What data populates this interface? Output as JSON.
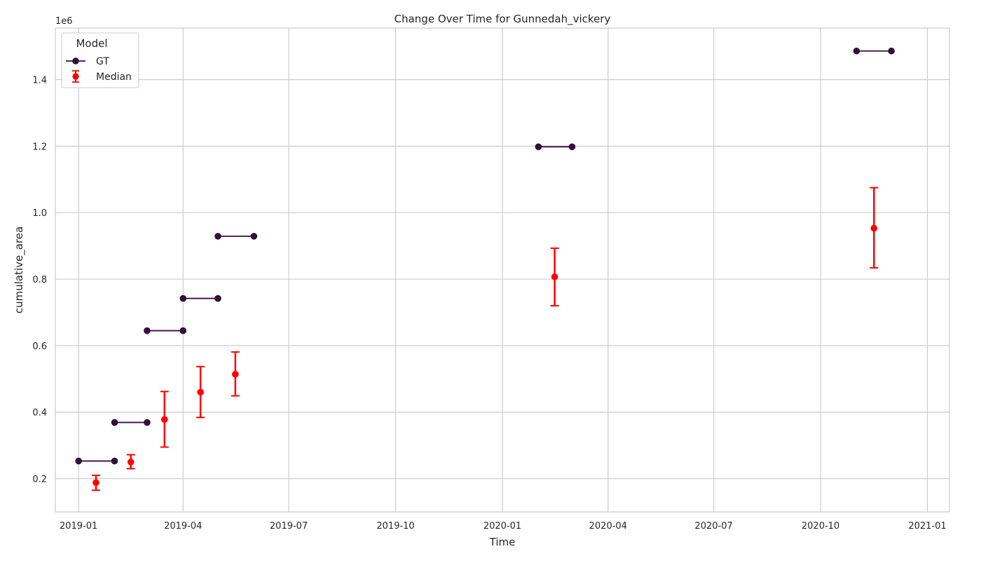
{
  "chart_data": {
    "type": "line",
    "title": "Change Over Time for Gunnedah_vickery",
    "xlabel": "Time",
    "ylabel": "cumulative_area",
    "y_offset_label": "1e6",
    "y_multiplier": 1000000,
    "xlim": [
      "2018-12-12",
      "2021-01-20"
    ],
    "ylim": [
      100000,
      1555000
    ],
    "x_ticks": [
      "2019-01",
      "2019-04",
      "2019-07",
      "2019-10",
      "2020-01",
      "2020-04",
      "2020-07",
      "2020-10",
      "2021-01"
    ],
    "y_ticks": [
      0.2,
      0.4,
      0.6,
      0.8,
      1.0,
      1.2,
      1.4
    ],
    "grid": true,
    "legend": {
      "title": "Model",
      "position": "top-left",
      "entries": [
        "GT",
        "Median"
      ]
    },
    "colors": {
      "gt_line": "#3b0a45",
      "gt_marker": "#3b0a45",
      "median": "#ff0000",
      "grid": "#cccccc",
      "axes": "#cccccc"
    },
    "gt_segments": [
      {
        "x": [
          "2019-01-01",
          "2019-02-01"
        ],
        "y": 253000
      },
      {
        "x": [
          "2019-02-01",
          "2019-03-01"
        ],
        "y": 369000
      },
      {
        "x": [
          "2019-03-01",
          "2019-04-01"
        ],
        "y": 645000
      },
      {
        "x": [
          "2019-04-01",
          "2019-05-01"
        ],
        "y": 742000
      },
      {
        "x": [
          "2019-05-01",
          "2019-06-01"
        ],
        "y": 929000
      },
      {
        "x": [
          "2020-02-01",
          "2020-03-01"
        ],
        "y": 1198000
      },
      {
        "x": [
          "2020-11-01",
          "2020-12-01"
        ],
        "y": 1486000
      }
    ],
    "median_points": [
      {
        "x": "2019-01-16",
        "y": 188000,
        "low": 165000,
        "high": 210000
      },
      {
        "x": "2019-02-15",
        "y": 250000,
        "low": 230000,
        "high": 272000
      },
      {
        "x": "2019-03-16",
        "y": 378000,
        "low": 295000,
        "high": 462000
      },
      {
        "x": "2019-04-16",
        "y": 460000,
        "low": 384000,
        "high": 537000
      },
      {
        "x": "2019-05-16",
        "y": 514000,
        "low": 449000,
        "high": 581000
      },
      {
        "x": "2020-02-15",
        "y": 807000,
        "low": 720000,
        "high": 893000
      },
      {
        "x": "2020-11-16",
        "y": 953000,
        "low": 834000,
        "high": 1075000
      }
    ]
  }
}
